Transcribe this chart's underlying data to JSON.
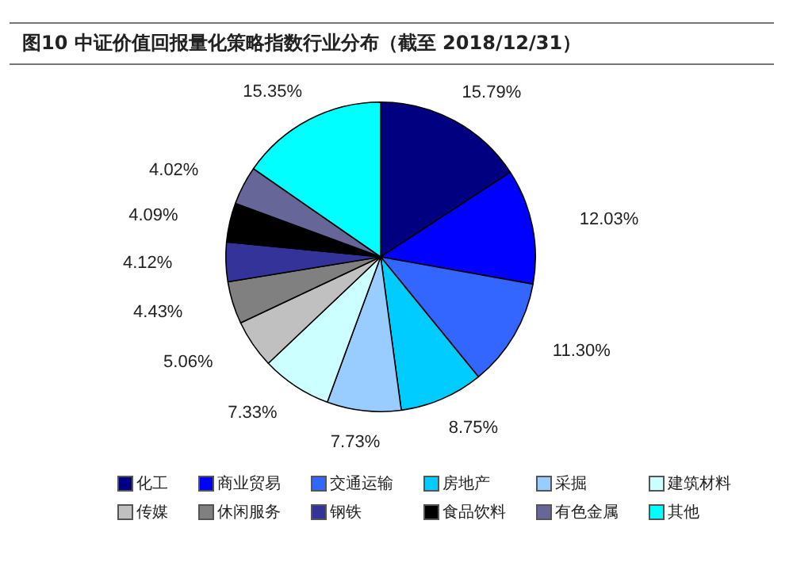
{
  "chart_data": {
    "type": "pie",
    "title": "图10  中证价值回报量化策略指数行业分布（截至 2018/12/31）",
    "categories": [
      "化工",
      "商业贸易",
      "交通运输",
      "房地产",
      "采掘",
      "建筑材料",
      "传媒",
      "休闲服务",
      "钢铁",
      "食品饮料",
      "有色金属",
      "其他"
    ],
    "values": [
      15.79,
      12.03,
      11.3,
      8.75,
      7.73,
      7.33,
      5.06,
      4.43,
      4.12,
      4.09,
      4.02,
      15.35
    ],
    "value_labels": [
      "15.79%",
      "12.03%",
      "11.30%",
      "8.75%",
      "7.73%",
      "7.33%",
      "5.06%",
      "4.43%",
      "4.12%",
      "4.09%",
      "4.02%",
      "15.35%"
    ],
    "colors": [
      "#000080",
      "#0000ff",
      "#3366ff",
      "#00ccff",
      "#99ccff",
      "#ccffff",
      "#c0c0c0",
      "#808080",
      "#333399",
      "#000000",
      "#666699",
      "#00ffff"
    ],
    "legend": "bottom"
  }
}
